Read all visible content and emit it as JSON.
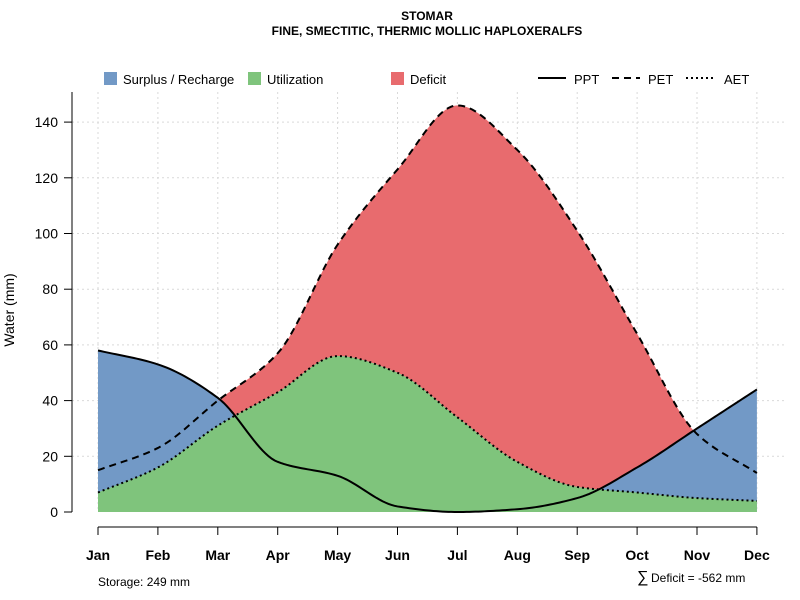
{
  "chart_data": {
    "type": "area",
    "title": "STOMAR",
    "subtitle": "FINE, SMECTITIC, THERMIC MOLLIC HAPLOXERALFS",
    "xlabel": "",
    "ylabel": "Water (mm)",
    "ylim": [
      0,
      150
    ],
    "yticks": [
      0,
      20,
      40,
      60,
      80,
      100,
      120,
      140
    ],
    "categories": [
      "Jan",
      "Feb",
      "Mar",
      "Apr",
      "May",
      "Jun",
      "Jul",
      "Aug",
      "Sep",
      "Oct",
      "Nov",
      "Dec"
    ],
    "grid": true,
    "series": [
      {
        "name": "PPT",
        "style": "solid",
        "values": [
          58,
          53,
          41,
          18,
          13,
          2,
          0,
          1,
          5,
          16,
          30,
          44
        ]
      },
      {
        "name": "PET",
        "style": "dashed",
        "values": [
          15,
          23,
          40,
          57,
          96,
          123,
          146,
          130,
          101,
          64,
          28,
          14
        ]
      },
      {
        "name": "AET",
        "style": "dotted",
        "values": [
          7,
          16,
          31,
          43,
          56,
          50,
          34,
          18,
          9,
          7,
          5,
          4
        ]
      }
    ],
    "legend": {
      "position": "top",
      "fills": [
        {
          "label": "Surplus / Recharge",
          "color": "#7299c6"
        },
        {
          "label": "Utilization",
          "color": "#7fc47c"
        },
        {
          "label": "Deficit",
          "color": "#e86b6e"
        }
      ],
      "lines": [
        {
          "label": "PPT",
          "style": "solid"
        },
        {
          "label": "PET",
          "style": "dashed"
        },
        {
          "label": "AET",
          "style": "dotted"
        }
      ]
    },
    "annotations": {
      "storage": "Storage: 249 mm",
      "deficit_symbol": "∑",
      "deficit": "Deficit = -562 mm"
    }
  }
}
